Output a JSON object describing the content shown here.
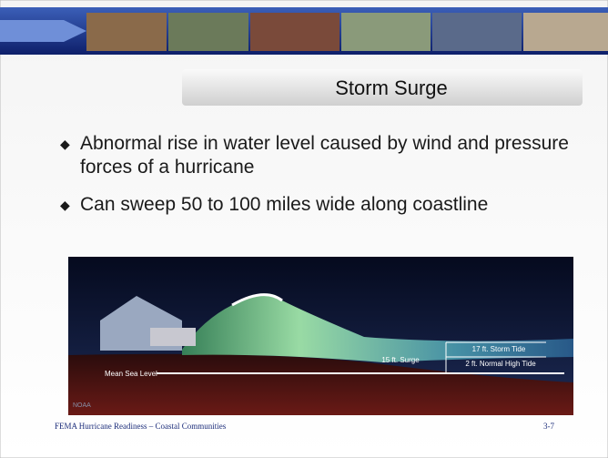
{
  "header": {
    "title": "Storm Surge"
  },
  "bullets": [
    "Abnormal rise in water level caused by wind and pressure forces of a hurricane",
    "Can sweep 50 to 100 miles wide along coastline"
  ],
  "figure": {
    "labels": {
      "storm_tide": "17 ft. Storm Tide",
      "high_tide": "2 ft. Normal High Tide",
      "surge": "15 ft. Surge",
      "sea_level": "Mean Sea Level",
      "credit": "NOAA"
    }
  },
  "footer": {
    "left": "FEMA Hurricane Readiness – Coastal Communities",
    "right": "3-7"
  }
}
